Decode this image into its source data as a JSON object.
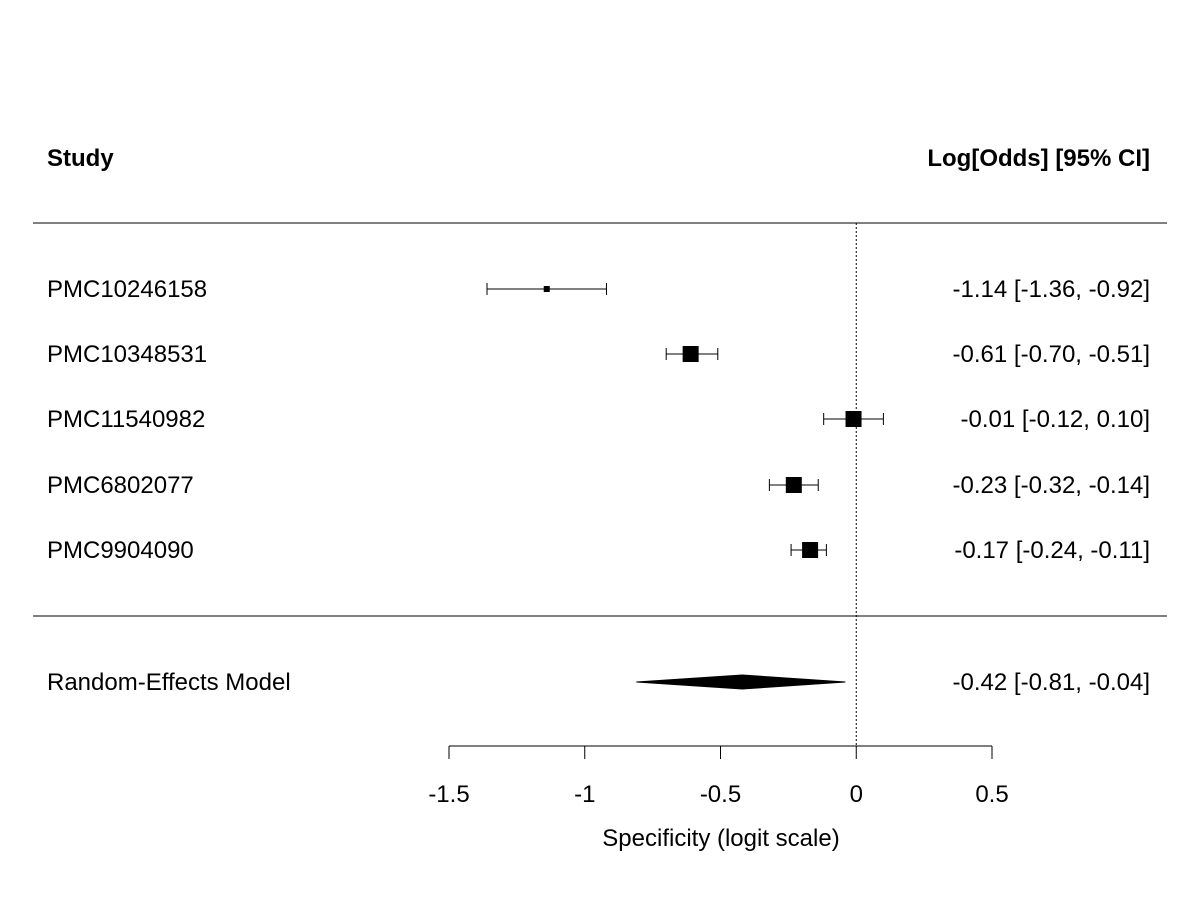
{
  "chart_data": {
    "type": "forest",
    "header": {
      "left": "Study",
      "right": "Log[Odds] [95% CI]"
    },
    "studies": [
      {
        "label": "PMC10246158",
        "estimate": -1.14,
        "ci_lower": -1.36,
        "ci_upper": -0.92,
        "ci_text": "-1.14 [-1.36, -0.92]",
        "weight_rank": 1
      },
      {
        "label": "PMC10348531",
        "estimate": -0.61,
        "ci_lower": -0.7,
        "ci_upper": -0.51,
        "ci_text": "-0.61 [-0.70, -0.51]",
        "weight_rank": 3
      },
      {
        "label": "PMC11540982",
        "estimate": -0.01,
        "ci_lower": -0.12,
        "ci_upper": 0.1,
        "ci_text": "-0.01 [-0.12,  0.10]",
        "weight_rank": 3
      },
      {
        "label": "PMC6802077",
        "estimate": -0.23,
        "ci_lower": -0.32,
        "ci_upper": -0.14,
        "ci_text": "-0.23 [-0.32, -0.14]",
        "weight_rank": 3
      },
      {
        "label": "PMC9904090",
        "estimate": -0.17,
        "ci_lower": -0.24,
        "ci_upper": -0.11,
        "ci_text": "-0.17 [-0.24, -0.11]",
        "weight_rank": 3
      }
    ],
    "summary": {
      "label": "Random-Effects Model",
      "estimate": -0.42,
      "ci_lower": -0.81,
      "ci_upper": -0.04,
      "ci_text": "-0.42 [-0.81, -0.04]"
    },
    "xaxis": {
      "label": "Specificity (logit scale)",
      "ticks": [
        -1.5,
        -1,
        -0.5,
        0,
        0.5
      ],
      "tick_labels": [
        "-1.5",
        "-1",
        "-0.5",
        "0",
        "0.5"
      ],
      "range": [
        -1.5,
        0.5
      ]
    },
    "reference_line": 0
  }
}
